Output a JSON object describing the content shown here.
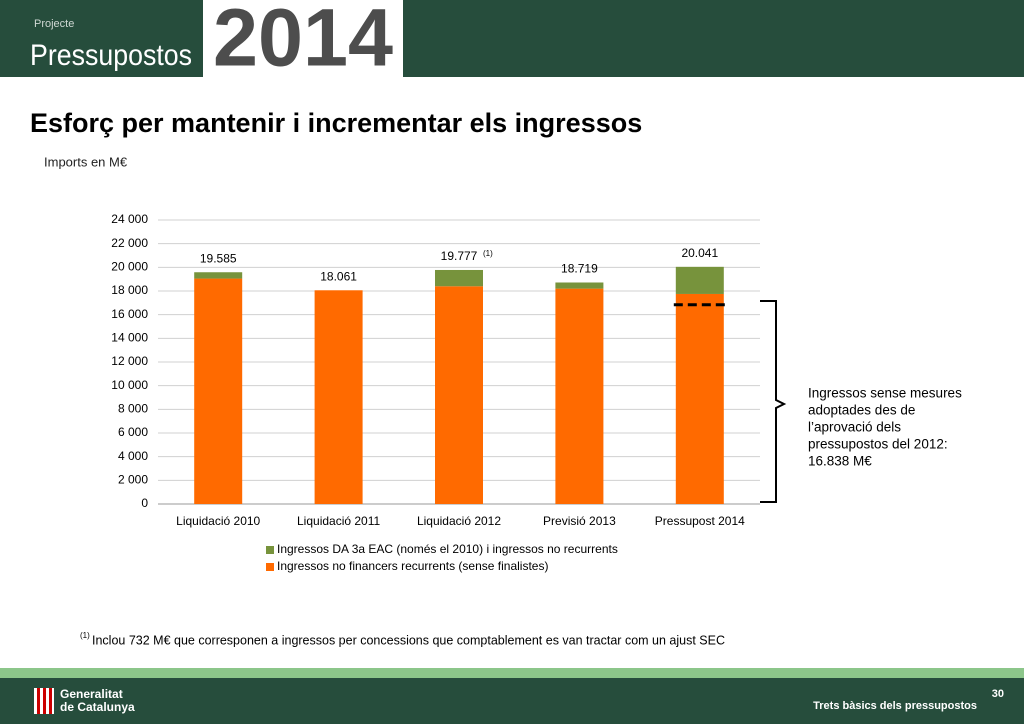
{
  "header": {
    "kicker": "Projecte",
    "title": "Pressupostos",
    "year": "2014"
  },
  "chart_data": {
    "type": "bar",
    "stacked": true,
    "title": "Esforç per mantenir i incrementar els ingressos",
    "subtitle": "Imports en M€",
    "categories": [
      "Liquidació 2010",
      "Liquidació 2011",
      "Liquidació 2012",
      "Previsió 2013",
      "Pressupost 2014"
    ],
    "series": [
      {
        "name": "Ingressos no financers recurrents (sense finalistes)",
        "color": "#ff6a00",
        "values": [
          19050,
          18061,
          18400,
          18200,
          17750
        ]
      },
      {
        "name": "Ingressos DA 3a EAC (només el 2010) i ingressos no recurrents",
        "color": "#77933c",
        "values": [
          535,
          0,
          1377,
          519,
          2291
        ]
      }
    ],
    "totals": {
      "values": [
        19585,
        18061,
        19777,
        18719,
        20041
      ],
      "value_labels": [
        "19.585",
        "18.061",
        "19.777",
        "18.719",
        "20.041"
      ]
    },
    "ylim": [
      0,
      24000
    ],
    "yticks": [
      0,
      {
        "value": 2000,
        "label": "2 000"
      },
      {
        "value": 4000,
        "label": "4 000"
      },
      {
        "value": 6000,
        "label": "6 000"
      },
      {
        "value": 8000,
        "label": "8 000"
      },
      {
        "value": 10000,
        "label": "10 000"
      },
      {
        "value": 12000,
        "label": "12 000"
      },
      {
        "value": 14000,
        "label": "14 000"
      },
      {
        "value": 16000,
        "label": "16 000"
      },
      {
        "value": 18000,
        "label": "18 000"
      },
      {
        "value": 20000,
        "label": "20 000"
      },
      {
        "value": 22000,
        "label": "22 000"
      },
      {
        "value": 24000,
        "label": "24 000"
      }
    ],
    "grid": true,
    "reference": {
      "value": 16838,
      "text": [
        "Ingressos sense mesures",
        "adoptades des de",
        "l’aprovació dels",
        "pressupostos del 2012:",
        "16.838 M€"
      ]
    }
  },
  "footnote": {
    "mark": "(1)",
    "text": "Inclou 732 M€ que corresponen a ingressos per concessions que comptablement es van tractar com un ajust SEC"
  },
  "footer": {
    "org": [
      "Generalitat",
      "de Catalunya"
    ],
    "page": "30",
    "section": "Trets bàsics dels pressupostos"
  }
}
